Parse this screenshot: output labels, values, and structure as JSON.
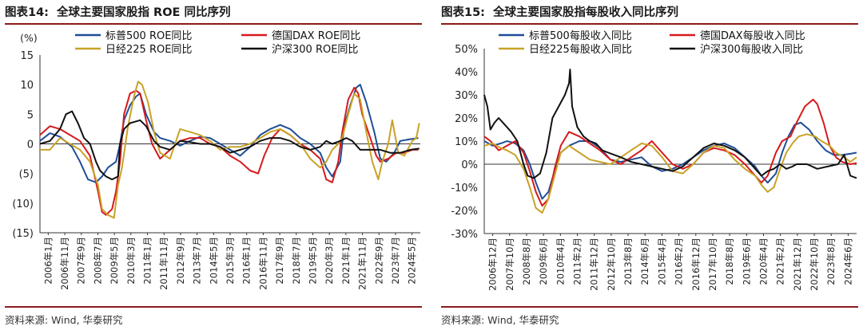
{
  "left": {
    "title_num": "图表14:",
    "title_text": "全球主要国家股指 ROE 同比序列",
    "source": "资料来源: Wind, 华泰研究",
    "unit_label": "(%)"
  },
  "right": {
    "title_num": "图表15:",
    "title_text": "全球主要国家股指每股收入同比序列",
    "source": "资料来源: Wind, 华泰研究"
  },
  "colors": {
    "sp500": "#1f4e96",
    "dax": "#d7191c",
    "nikkei": "#c9a227",
    "csi300": "#111111",
    "accent": "#8a1c1c"
  },
  "chart_data": [
    {
      "type": "line",
      "title": "全球主要国家股指 ROE 同比序列",
      "ylabel": "(%)",
      "ylim": [
        -15,
        15
      ],
      "yticks": [
        15,
        10,
        5,
        0,
        -5,
        -10,
        -15
      ],
      "ytick_labels": [
        "15",
        "10",
        "5",
        "0",
        "(5)",
        "(10)",
        "(15)"
      ],
      "x_tick_labels": [
        "2006年1月",
        "2006年11月",
        "2007年9月",
        "2008年7月",
        "2009年5月",
        "2010年3月",
        "2011年1月",
        "2011年11月",
        "2012年9月",
        "2013年7月",
        "2014年5月",
        "2015年3月",
        "2016年1月",
        "2016年11月",
        "2017年9月",
        "2018年7月",
        "2019年5月",
        "2020年3月",
        "2021年1月",
        "2021年11月",
        "2022年9月",
        "2023年7月",
        "2024年5月"
      ],
      "x_start": 2006.0,
      "x_end": 2025.0,
      "legend": "top",
      "series": [
        {
          "name": "标普500 ROE同比",
          "key": "sp500",
          "x": [
            2006.0,
            2006.5,
            2007.0,
            2007.6,
            2008.0,
            2008.4,
            2008.8,
            2009.1,
            2009.4,
            2009.8,
            2010.0,
            2010.2,
            2010.5,
            2010.8,
            2011.0,
            2011.3,
            2011.7,
            2012.0,
            2012.5,
            2013.0,
            2013.5,
            2014.0,
            2014.5,
            2015.0,
            2015.5,
            2016.0,
            2016.5,
            2017.0,
            2017.5,
            2018.0,
            2018.5,
            2019.0,
            2019.5,
            2020.0,
            2020.3,
            2020.6,
            2021.0,
            2021.2,
            2021.5,
            2021.8,
            2022.0,
            2022.3,
            2022.7,
            2023.0,
            2023.3,
            2023.7,
            2024.0,
            2024.5,
            2024.9
          ],
          "values": [
            0.5,
            1.8,
            1.2,
            -0.5,
            -3.0,
            -6.0,
            -6.5,
            -5.5,
            -4.0,
            -3.0,
            0.0,
            4.0,
            6.5,
            8.0,
            8.5,
            5.0,
            2.0,
            1.0,
            0.5,
            -0.3,
            0.5,
            1.2,
            1.0,
            0.0,
            -1.0,
            -2.0,
            -0.5,
            1.5,
            2.5,
            3.2,
            2.5,
            1.0,
            0.0,
            -1.5,
            -4.0,
            -5.5,
            -3.0,
            3.0,
            6.5,
            9.5,
            10.0,
            7.0,
            2.0,
            -2.5,
            -3.0,
            -1.5,
            0.5,
            0.8,
            1.0
          ]
        },
        {
          "name": "德国DAX ROE同比",
          "key": "dax",
          "x": [
            2006.0,
            2006.5,
            2007.0,
            2007.5,
            2008.0,
            2008.5,
            2008.9,
            2009.1,
            2009.3,
            2009.6,
            2009.8,
            2010.0,
            2010.2,
            2010.5,
            2010.8,
            2011.0,
            2011.3,
            2011.6,
            2012.0,
            2012.5,
            2013.0,
            2013.5,
            2014.0,
            2014.5,
            2015.0,
            2015.5,
            2016.0,
            2016.5,
            2016.9,
            2017.2,
            2017.6,
            2018.0,
            2018.5,
            2019.0,
            2019.5,
            2020.0,
            2020.3,
            2020.6,
            2020.9,
            2021.1,
            2021.4,
            2021.7,
            2021.9,
            2022.1,
            2022.5,
            2022.8,
            2023.0,
            2023.4,
            2023.8,
            2024.2,
            2024.6,
            2024.9
          ],
          "values": [
            1.5,
            3.0,
            2.5,
            1.5,
            0.5,
            -2.0,
            -8.0,
            -11.5,
            -12.0,
            -11.0,
            -8.0,
            -3.0,
            5.0,
            8.5,
            9.0,
            8.5,
            4.0,
            0.0,
            -2.5,
            -1.0,
            0.5,
            1.0,
            1.0,
            0.0,
            -0.5,
            -2.0,
            -3.0,
            -4.5,
            -5.0,
            -2.0,
            1.0,
            2.5,
            1.5,
            0.0,
            -1.0,
            -2.5,
            -6.0,
            -6.5,
            -3.0,
            2.0,
            7.5,
            9.5,
            8.5,
            5.0,
            1.0,
            -2.0,
            -3.0,
            -2.5,
            -1.5,
            -1.5,
            -1.0,
            -1.0
          ]
        },
        {
          "name": "日经225 ROE同比",
          "key": "nikkei",
          "x": [
            2006.0,
            2006.5,
            2007.0,
            2007.5,
            2008.0,
            2008.5,
            2008.9,
            2009.1,
            2009.4,
            2009.7,
            2009.9,
            2010.1,
            2010.4,
            2010.7,
            2010.9,
            2011.1,
            2011.4,
            2011.7,
            2012.0,
            2012.5,
            2013.0,
            2013.5,
            2014.0,
            2014.5,
            2015.0,
            2015.5,
            2016.0,
            2016.5,
            2017.0,
            2017.5,
            2018.0,
            2018.5,
            2019.0,
            2019.5,
            2020.0,
            2020.3,
            2020.6,
            2020.9,
            2021.1,
            2021.4,
            2021.7,
            2022.0,
            2022.3,
            2022.6,
            2022.9,
            2023.1,
            2023.4,
            2023.6,
            2023.9,
            2024.2,
            2024.6,
            2024.8,
            2024.95
          ],
          "values": [
            -1.0,
            -1.0,
            1.0,
            0.0,
            -1.0,
            -3.0,
            -7.0,
            -11.0,
            -12.0,
            -12.5,
            -7.0,
            -4.0,
            3.0,
            8.0,
            10.5,
            10.0,
            7.0,
            2.0,
            -1.5,
            -2.5,
            2.5,
            2.0,
            1.5,
            0.5,
            -1.0,
            -0.5,
            -0.5,
            0.0,
            1.0,
            2.0,
            2.5,
            1.5,
            0.0,
            -2.5,
            -4.0,
            -3.0,
            -1.0,
            0.0,
            1.0,
            5.0,
            8.5,
            7.5,
            2.0,
            -3.0,
            -6.0,
            -3.0,
            0.0,
            4.0,
            -1.5,
            -2.0,
            0.5,
            1.0,
            3.5
          ]
        },
        {
          "name": "沪深300 ROE同比",
          "key": "csi300",
          "x": [
            2006.0,
            2006.5,
            2007.0,
            2007.3,
            2007.6,
            2007.9,
            2008.2,
            2008.5,
            2008.8,
            2009.0,
            2009.3,
            2009.6,
            2009.9,
            2010.0,
            2010.2,
            2010.5,
            2010.8,
            2011.0,
            2011.3,
            2011.7,
            2012.0,
            2012.5,
            2013.0,
            2013.5,
            2014.0,
            2014.5,
            2015.0,
            2015.5,
            2016.0,
            2016.5,
            2017.0,
            2017.5,
            2018.0,
            2018.5,
            2019.0,
            2019.5,
            2020.0,
            2020.3,
            2020.6,
            2021.0,
            2021.3,
            2021.6,
            2022.0,
            2022.5,
            2023.0,
            2023.5,
            2024.0,
            2024.5,
            2024.95
          ],
          "values": [
            0.0,
            0.5,
            2.5,
            5.0,
            5.5,
            3.5,
            1.0,
            0.0,
            -3.0,
            -4.5,
            -5.5,
            -6.0,
            -5.5,
            0.0,
            2.5,
            3.5,
            3.8,
            4.0,
            3.0,
            0.5,
            -0.5,
            -1.0,
            0.5,
            0.3,
            0.0,
            0.0,
            -0.5,
            -1.5,
            -1.0,
            -0.5,
            0.5,
            1.0,
            1.0,
            0.5,
            -0.5,
            -1.0,
            -0.5,
            0.5,
            0.0,
            0.5,
            1.0,
            0.5,
            -1.0,
            -1.0,
            -1.0,
            -1.5,
            -1.5,
            -1.0,
            -0.8
          ]
        }
      ]
    },
    {
      "type": "line",
      "title": "全球主要国家股指每股收入同比序列",
      "ylim": [
        -30,
        50
      ],
      "yticks": [
        50,
        40,
        30,
        20,
        10,
        0,
        -10,
        -20,
        -30
      ],
      "ytick_labels": [
        "50%",
        "40%",
        "30%",
        "20%",
        "10%",
        "0%",
        "-10%",
        "-20%",
        "-30%"
      ],
      "x_tick_labels": [
        "2006年12月",
        "2007年10月",
        "2008年8月",
        "2009年6月",
        "2010年4月",
        "2011年2月",
        "2011年12月",
        "2012年10月",
        "2013年8月",
        "2014年6月",
        "2015年4月",
        "2016年2月",
        "2016年12月",
        "2017年10月",
        "2018年8月",
        "2019年6月",
        "2020年4月",
        "2021年2月",
        "2021年12月",
        "2022年10月",
        "2023年8月",
        "2024年6月"
      ],
      "x_start": 2006.9,
      "x_end": 2024.9,
      "legend": "top",
      "series": [
        {
          "name": "标普500每股收入同比",
          "key": "sp500",
          "x": [
            2006.9,
            2007.3,
            2007.7,
            2008.0,
            2008.4,
            2008.8,
            2009.1,
            2009.4,
            2009.7,
            2010.0,
            2010.3,
            2010.6,
            2011.0,
            2011.5,
            2012.0,
            2012.5,
            2013.0,
            2013.5,
            2014.0,
            2014.5,
            2015.0,
            2015.5,
            2016.0,
            2016.5,
            2017.0,
            2017.5,
            2018.0,
            2018.5,
            2019.0,
            2019.5,
            2020.0,
            2020.3,
            2020.6,
            2021.0,
            2021.3,
            2021.6,
            2021.9,
            2022.2,
            2022.6,
            2023.0,
            2023.4,
            2023.8,
            2024.2,
            2024.6,
            2024.9
          ],
          "values": [
            10.0,
            8.0,
            9.0,
            10.0,
            9.0,
            6.0,
            0.0,
            -8.0,
            -15.0,
            -12.0,
            -3.0,
            5.0,
            8.0,
            10.0,
            10.0,
            7.0,
            2.0,
            1.0,
            2.0,
            3.0,
            -1.0,
            -3.0,
            -2.0,
            0.0,
            3.0,
            6.0,
            8.0,
            9.0,
            7.0,
            3.0,
            -1.0,
            -5.0,
            -8.0,
            -4.0,
            5.0,
            12.0,
            17.0,
            18.0,
            15.0,
            10.0,
            6.0,
            4.0,
            4.0,
            4.5,
            5.0
          ]
        },
        {
          "name": "德国DAX每股收入同比",
          "key": "dax",
          "x": [
            2006.9,
            2007.2,
            2007.6,
            2008.0,
            2008.4,
            2008.8,
            2009.1,
            2009.4,
            2009.7,
            2010.0,
            2010.3,
            2010.6,
            2011.0,
            2011.5,
            2012.0,
            2012.5,
            2013.0,
            2013.5,
            2014.0,
            2014.5,
            2015.0,
            2015.5,
            2016.0,
            2016.5,
            2017.0,
            2017.5,
            2018.0,
            2018.5,
            2019.0,
            2019.5,
            2020.0,
            2020.3,
            2020.6,
            2021.0,
            2021.3,
            2021.7,
            2022.0,
            2022.4,
            2022.8,
            2023.0,
            2023.3,
            2023.6,
            2023.9,
            2024.2,
            2024.6,
            2024.9
          ],
          "values": [
            12.0,
            10.0,
            6.0,
            8.0,
            10.0,
            5.0,
            -3.0,
            -12.0,
            -18.0,
            -15.0,
            -2.0,
            8.0,
            14.0,
            12.0,
            9.0,
            6.0,
            2.0,
            0.0,
            3.0,
            6.0,
            10.0,
            5.0,
            0.0,
            -2.0,
            0.0,
            5.0,
            7.0,
            6.0,
            4.0,
            0.0,
            -5.0,
            -8.0,
            -5.0,
            5.0,
            10.0,
            12.0,
            18.0,
            25.0,
            28.0,
            26.0,
            18.0,
            8.0,
            3.0,
            1.0,
            0.0,
            0.5
          ]
        },
        {
          "name": "日经225每股收入同比",
          "key": "nikkei",
          "x": [
            2006.9,
            2007.3,
            2007.7,
            2008.0,
            2008.4,
            2008.8,
            2009.1,
            2009.4,
            2009.7,
            2010.0,
            2010.3,
            2010.6,
            2011.0,
            2011.5,
            2012.0,
            2012.5,
            2013.0,
            2013.5,
            2014.0,
            2014.5,
            2015.0,
            2015.5,
            2016.0,
            2016.5,
            2017.0,
            2017.5,
            2018.0,
            2018.5,
            2019.0,
            2019.5,
            2020.0,
            2020.3,
            2020.6,
            2020.9,
            2021.2,
            2021.5,
            2021.8,
            2022.1,
            2022.5,
            2022.9,
            2023.2,
            2023.6,
            2023.9,
            2024.3,
            2024.6,
            2024.9
          ],
          "values": [
            8.0,
            9.0,
            7.0,
            6.0,
            4.0,
            -2.0,
            -10.0,
            -19.0,
            -21.0,
            -15.0,
            -5.0,
            5.0,
            8.0,
            5.0,
            2.0,
            1.0,
            0.0,
            3.0,
            6.0,
            9.0,
            8.0,
            3.0,
            -3.0,
            -4.0,
            0.0,
            5.0,
            8.0,
            7.0,
            2.0,
            -2.0,
            -5.0,
            -9.0,
            -12.0,
            -10.0,
            -2.0,
            5.0,
            9.0,
            12.0,
            13.0,
            12.0,
            10.0,
            8.0,
            5.0,
            3.0,
            1.0,
            3.0
          ]
        },
        {
          "name": "沪深300每股收入同比",
          "key": "csi300",
          "x": [
            2006.9,
            2007.05,
            2007.2,
            2007.4,
            2007.6,
            2007.9,
            2008.2,
            2008.5,
            2008.8,
            2009.0,
            2009.3,
            2009.6,
            2009.9,
            2010.2,
            2010.5,
            2010.8,
            2011.0,
            2011.05,
            2011.15,
            2011.4,
            2011.7,
            2012.0,
            2012.3,
            2012.6,
            2012.9,
            2013.2,
            2013.5,
            2014.0,
            2014.5,
            2015.0,
            2015.5,
            2016.0,
            2016.5,
            2017.0,
            2017.5,
            2018.0,
            2018.5,
            2019.0,
            2019.5,
            2020.0,
            2020.3,
            2020.6,
            2020.9,
            2021.2,
            2021.5,
            2021.8,
            2022.0,
            2022.5,
            2023.0,
            2023.5,
            2024.0,
            2024.3,
            2024.6,
            2024.9
          ],
          "values": [
            30.0,
            25.0,
            15.0,
            18.0,
            20.0,
            17.0,
            14.0,
            10.0,
            0.0,
            -5.0,
            -6.0,
            -4.0,
            5.0,
            20.0,
            25.0,
            30.0,
            35.0,
            41.0,
            25.0,
            16.0,
            12.0,
            10.0,
            9.0,
            6.0,
            5.0,
            4.0,
            3.0,
            1.0,
            0.0,
            -1.0,
            -2.0,
            -3.0,
            -1.0,
            3.0,
            7.0,
            9.0,
            8.0,
            6.0,
            3.0,
            -2.0,
            -5.0,
            -3.0,
            -2.0,
            0.0,
            -2.0,
            -1.0,
            0.0,
            0.0,
            -2.0,
            -1.0,
            0.0,
            4.0,
            -5.0,
            -6.0
          ]
        }
      ]
    }
  ]
}
